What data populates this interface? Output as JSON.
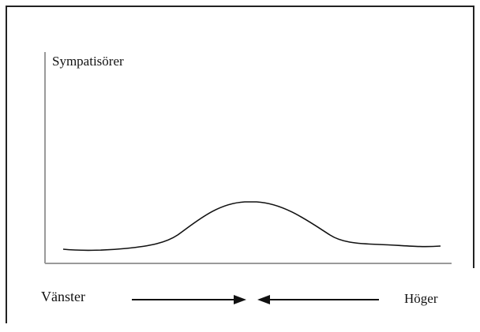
{
  "diagram": {
    "y_axis_label": "Sympatisörer",
    "left_label": "Vänster",
    "right_label": "Höger",
    "curve_shape": "bell-shaped distribution peaking in the middle",
    "arrows": "two arrows pointing toward the center from left and right",
    "colors": {
      "line": "#111111",
      "axis": "#9a9a9a",
      "frame": "#222222",
      "background": "#ffffff"
    }
  }
}
